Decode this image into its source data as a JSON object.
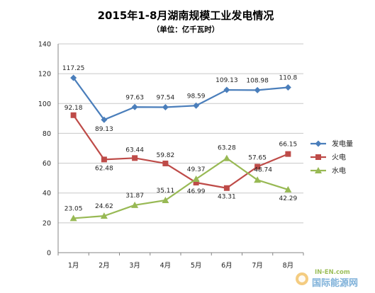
{
  "chart_data": {
    "type": "line",
    "title": "2015年1-8月湖南规模工业发电情况",
    "subtitle": "（单位：亿千瓦时）",
    "categories": [
      "1月",
      "2月",
      "3月",
      "4月",
      "5月",
      "6月",
      "7月",
      "8月"
    ],
    "ylim": [
      0,
      140
    ],
    "yticks": [
      0,
      20,
      40,
      60,
      80,
      100,
      120,
      140
    ],
    "grid": true,
    "legend_position": "right",
    "series": [
      {
        "name": "发电量",
        "color": "#4a7ebb",
        "marker": "diamond",
        "values": [
          117.25,
          89.13,
          97.63,
          97.54,
          98.59,
          109.13,
          108.98,
          110.8
        ],
        "labels": [
          "117.25",
          "89.13",
          "97.63",
          "97.54",
          "98.59",
          "109.13",
          "108.98",
          "110.8"
        ]
      },
      {
        "name": "火电",
        "color": "#be4b48",
        "marker": "square",
        "values": [
          92.18,
          62.48,
          63.44,
          59.82,
          46.99,
          43.31,
          57.65,
          66.15
        ],
        "labels": [
          "92.18",
          "62.48",
          "63.44",
          "59.82",
          "46.99",
          "43.31",
          "57.65",
          "66.15"
        ]
      },
      {
        "name": "水电",
        "color": "#98b954",
        "marker": "triangle",
        "values": [
          23.05,
          24.62,
          31.87,
          35.11,
          49.37,
          63.28,
          48.74,
          42.29
        ],
        "labels": [
          "23.05",
          "24.62",
          "31.87",
          "35.11",
          "49.37",
          "63.28",
          "48.74",
          "42.29"
        ]
      }
    ]
  },
  "watermark": {
    "top_text": "IN-EN.com",
    "main_text": "国际能源网"
  }
}
